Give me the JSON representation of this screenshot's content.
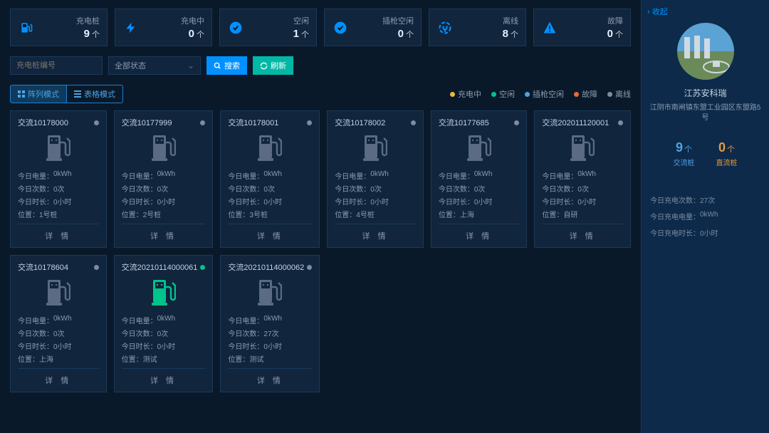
{
  "colors": {
    "charging": "#e8b941",
    "idle": "#00c48c",
    "plugIdle": "#4ba3e3",
    "fault": "#e86a3c",
    "offline": "#7a8ba3",
    "iconDefault": "#5a6b83"
  },
  "stats": [
    {
      "icon": "pump",
      "label": "充电桩",
      "value": "9",
      "unit": "个",
      "color": "#0091ff"
    },
    {
      "icon": "bolt",
      "label": "充电中",
      "value": "0",
      "unit": "个",
      "color": "#0091ff"
    },
    {
      "icon": "check",
      "label": "空闲",
      "value": "1",
      "unit": "个",
      "color": "#0091ff"
    },
    {
      "icon": "check",
      "label": "插枪空闲",
      "value": "0",
      "unit": "个",
      "color": "#0091ff"
    },
    {
      "icon": "plug",
      "label": "离线",
      "value": "8",
      "unit": "个",
      "color": "#0091ff"
    },
    {
      "icon": "warn",
      "label": "故障",
      "value": "0",
      "unit": "个",
      "color": "#0091ff"
    }
  ],
  "filter": {
    "placeholder": "充电桩编号",
    "status_label": "全部状态",
    "search_btn": "搜索",
    "refresh_btn": "刷新"
  },
  "mode": {
    "array": "阵列模式",
    "table": "表格模式"
  },
  "legend": [
    {
      "label": "充电中",
      "colorKey": "charging"
    },
    {
      "label": "空闲",
      "colorKey": "idle"
    },
    {
      "label": "插枪空闲",
      "colorKey": "plugIdle"
    },
    {
      "label": "故障",
      "colorKey": "fault"
    },
    {
      "label": "离线",
      "colorKey": "offline"
    }
  ],
  "card_labels": {
    "energy": "今日电量",
    "count": "今日次数",
    "duration": "今日时长",
    "position": "位置",
    "detail": "详 情"
  },
  "cards": [
    {
      "title": "交流10178000",
      "status": "offline",
      "energy": "0kWh",
      "count": "0次",
      "duration": "0小时",
      "position": "1号桩"
    },
    {
      "title": "交流10177999",
      "status": "offline",
      "energy": "0kWh",
      "count": "0次",
      "duration": "0小时",
      "position": "2号桩"
    },
    {
      "title": "交流10178001",
      "status": "offline",
      "energy": "0kWh",
      "count": "0次",
      "duration": "0小时",
      "position": "3号桩"
    },
    {
      "title": "交流10178002",
      "status": "offline",
      "energy": "0kWh",
      "count": "0次",
      "duration": "0小时",
      "position": "4号桩"
    },
    {
      "title": "交流10177685",
      "status": "offline",
      "energy": "0kWh",
      "count": "0次",
      "duration": "0小时",
      "position": "上海"
    },
    {
      "title": "交流202011120001",
      "status": "offline",
      "energy": "0kWh",
      "count": "0次",
      "duration": "0小时",
      "position": "自研"
    },
    {
      "title": "交流10178604",
      "status": "offline",
      "energy": "0kWh",
      "count": "0次",
      "duration": "0小时",
      "position": "上海"
    },
    {
      "title": "交流20210114000061",
      "status": "idle",
      "energy": "0kWh",
      "count": "0次",
      "duration": "0小时",
      "position": "测试"
    },
    {
      "title": "交流20210114000062",
      "status": "offline",
      "energy": "0kWh",
      "count": "27次",
      "duration": "0小时",
      "position": "测试"
    }
  ],
  "sidebar": {
    "collapse": "收起",
    "name": "江苏安科瑞",
    "address": "江阴市南闸镇东盟工业园区东盟路5号",
    "ac": {
      "value": "9",
      "unit": "个",
      "label": "交流桩"
    },
    "dc": {
      "value": "0",
      "unit": "个",
      "label": "直流桩"
    },
    "stats": [
      {
        "k": "今日充电次数",
        "v": "27次"
      },
      {
        "k": "今日充电电量",
        "v": "0kWh"
      },
      {
        "k": "今日充电时长",
        "v": "0小时"
      }
    ]
  }
}
